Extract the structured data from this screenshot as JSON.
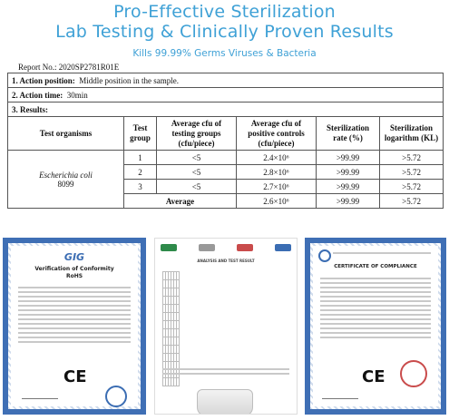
{
  "header": {
    "line1": "Pro-Effective Sterilization",
    "line2": "Lab Testing & Clinically Proven Results",
    "line3": "Kills 99.99% Germs Viruses & Bacteria"
  },
  "report_no": "Report No.: 2020SP2781R01E",
  "action_position": {
    "label": "1.   Action position:",
    "value": "Middle position in the sample."
  },
  "action_time": {
    "label": "2.   Action time:",
    "value": "30min"
  },
  "results_label": "3.   Results:",
  "columns": [
    "Test organisms",
    "Test group",
    "Average cfu of testing groups (cfu/piece)",
    "Average cfu of positive controls (cfu/piece)",
    "Sterilization rate (%)",
    "Sterilization logarithm (KL)"
  ],
  "organism": {
    "name": "Escherichia coli",
    "code": "8099"
  },
  "rows": [
    {
      "group": "1",
      "testing": "<5",
      "control": "2.4×10⁶",
      "rate": ">99.99",
      "log": ">5.72"
    },
    {
      "group": "2",
      "testing": "<5",
      "control": "2.8×10⁶",
      "rate": ">99.99",
      "log": ">5.72"
    },
    {
      "group": "3",
      "testing": "<5",
      "control": "2.7×10⁶",
      "rate": ">99.99",
      "log": ">5.72"
    }
  ],
  "average": {
    "label": "Average",
    "control": "2.6×10⁶",
    "rate": ">99.99",
    "log": ">5.72"
  },
  "certificates": {
    "c1": {
      "brand": "GIG",
      "title": "Verification of Conformity",
      "sub": "RoHS",
      "mark": "CE"
    },
    "c2": {
      "title": "ANALYSIS AND TEST RESULT"
    },
    "c3": {
      "title": "CERTIFICATE OF COMPLIANCE",
      "mark": "CE"
    }
  }
}
